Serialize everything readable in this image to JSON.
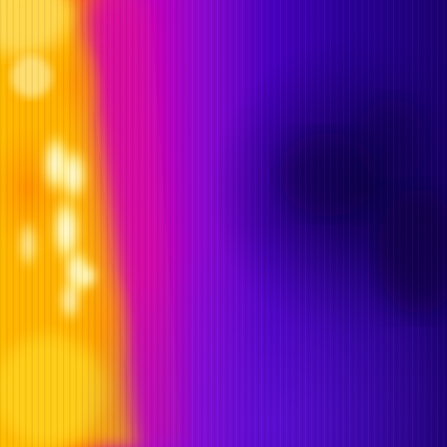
{
  "image": {
    "kind": "thermal-camera-frame",
    "palette": "ironbow",
    "palette_colors": {
      "hottest": "#fffbe0",
      "very_hot": "#ffe44a",
      "hot": "#ffb300",
      "warm": "#ff7a00",
      "mid_warm": "#e0158a",
      "mid": "#b300c8",
      "cool": "#6a10d8",
      "cold": "#3800b0",
      "coldest": "#10004a"
    }
  }
}
